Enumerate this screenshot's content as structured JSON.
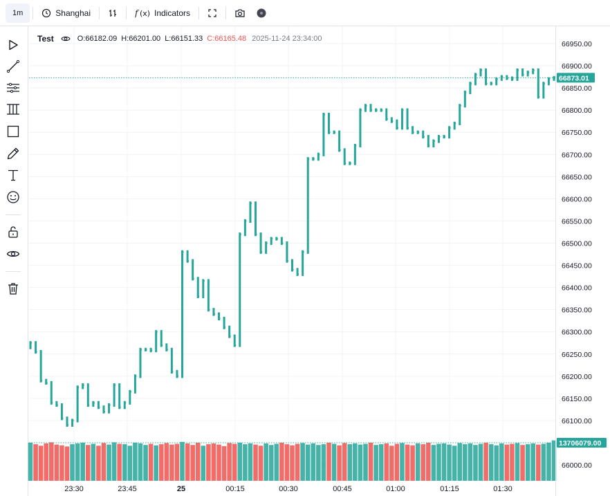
{
  "toolbar": {
    "interval": "1m",
    "timezone": "Shanghai",
    "indicators_label": "Indicators",
    "icons": [
      "clock-icon",
      "bar-style-icon",
      "function-icon",
      "fullscreen-icon",
      "camera-icon",
      "settings-dot-icon"
    ]
  },
  "sidebar": {
    "tools": [
      "cursor-icon",
      "trend-line-icon",
      "fib-icon",
      "channel-icon",
      "rectangle-icon",
      "brush-icon",
      "text-icon",
      "emoji-icon",
      "lock-icon",
      "eye-icon",
      "trash-icon"
    ]
  },
  "legend": {
    "symbol": "Test",
    "open": "O:66182.09",
    "high": "H:66201.00",
    "low": "L:66151.33",
    "close": "C:66165.48",
    "datetime": "2025-11-24 23:34:00"
  },
  "colors": {
    "up": "#26a69a",
    "down": "#ef5350",
    "accent": "#2962ff"
  },
  "price_axis": {
    "ticks": [
      "66950.00",
      "66900.00",
      "66850.00",
      "66800.00",
      "66750.00",
      "66700.00",
      "66650.00",
      "66600.00",
      "66550.00",
      "66500.00",
      "66450.00",
      "66400.00",
      "66350.00",
      "66300.00",
      "66250.00",
      "66200.00",
      "66150.00",
      "66100.00",
      "66000.00"
    ],
    "last_price": "66873.01",
    "last_volume": "13706079.00"
  },
  "chart_data": {
    "type": "ohlc",
    "price_range": [
      66050,
      66975
    ],
    "last_price_value": 66873.01,
    "time_labels": [
      "23:30",
      "23:45",
      "25",
      "00:15",
      "00:30",
      "00:45",
      "01:00",
      "01:15",
      "01:30"
    ],
    "closes": [
      66275,
      66255,
      66190,
      66185,
      66140,
      66135,
      66105,
      66090,
      66100,
      66175,
      66180,
      66135,
      66140,
      66130,
      66120,
      66135,
      66180,
      66130,
      66140,
      66165,
      66200,
      66260,
      66260,
      66258,
      66300,
      66270,
      66260,
      66210,
      66200,
      66480,
      66460,
      66420,
      66380,
      66415,
      66350,
      66340,
      66330,
      66310,
      66290,
      66270,
      66520,
      66550,
      66590,
      66520,
      66480,
      66500,
      66510,
      66510,
      66500,
      66460,
      66440,
      66430,
      66480,
      66690,
      66690,
      66700,
      66790,
      66750,
      66750,
      66710,
      66680,
      66680,
      66720,
      66800,
      66810,
      66800,
      66800,
      66800,
      66780,
      66775,
      66760,
      66800,
      66760,
      66750,
      66750,
      66740,
      66720,
      66730,
      66740,
      66740,
      66760,
      66770,
      66810,
      66840,
      66860,
      66880,
      66890,
      66860,
      66860,
      66870,
      66875,
      66872,
      66870,
      66890,
      66880,
      66885,
      66890,
      66830,
      66860,
      66870,
      66873
    ],
    "volumes": [
      0.82,
      0.78,
      0.74,
      0.8,
      0.83,
      0.77,
      0.75,
      0.72,
      0.78,
      0.8,
      0.82,
      0.76,
      0.79,
      0.74,
      0.81,
      0.77,
      0.83,
      0.79,
      0.78,
      0.74,
      0.82,
      0.8,
      0.76,
      0.79,
      0.75,
      0.78,
      0.81,
      0.77,
      0.79,
      0.84,
      0.8,
      0.76,
      0.82,
      0.74,
      0.78,
      0.8,
      0.77,
      0.73,
      0.81,
      0.79,
      0.82,
      0.78,
      0.8,
      0.77,
      0.74,
      0.8,
      0.76,
      0.79,
      0.82,
      0.78,
      0.75,
      0.79,
      0.81,
      0.77,
      0.8,
      0.76,
      0.78,
      0.82,
      0.79,
      0.75,
      0.81,
      0.78,
      0.8,
      0.77,
      0.79,
      0.82,
      0.76,
      0.78,
      0.8,
      0.74,
      0.79,
      0.81,
      0.77,
      0.75,
      0.8,
      0.78,
      0.82,
      0.76,
      0.79,
      0.8,
      0.77,
      0.74,
      0.81,
      0.78,
      0.8,
      0.76,
      0.79,
      0.82,
      0.78,
      0.75,
      0.8,
      0.77,
      0.79,
      0.81,
      0.76,
      0.78,
      0.8,
      0.77,
      0.79,
      0.82,
      0.88
    ]
  }
}
